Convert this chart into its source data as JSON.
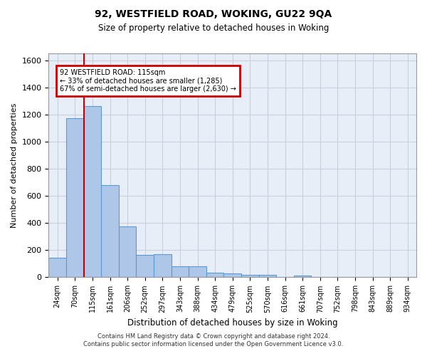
{
  "title_line1": "92, WESTFIELD ROAD, WOKING, GU22 9QA",
  "title_line2": "Size of property relative to detached houses in Woking",
  "xlabel": "Distribution of detached houses by size in Woking",
  "ylabel": "Number of detached properties",
  "footer_line1": "Contains HM Land Registry data © Crown copyright and database right 2024.",
  "footer_line2": "Contains public sector information licensed under the Open Government Licence v3.0.",
  "annotation_line1": "92 WESTFIELD ROAD: 115sqm",
  "annotation_line2": "← 33% of detached houses are smaller (1,285)",
  "annotation_line3": "67% of semi-detached houses are larger (2,630) →",
  "bar_labels": [
    "24sqm",
    "70sqm",
    "115sqm",
    "161sqm",
    "206sqm",
    "252sqm",
    "297sqm",
    "343sqm",
    "388sqm",
    "434sqm",
    "479sqm",
    "525sqm",
    "570sqm",
    "616sqm",
    "661sqm",
    "707sqm",
    "752sqm",
    "798sqm",
    "843sqm",
    "889sqm",
    "934sqm"
  ],
  "bar_values": [
    145,
    1175,
    1260,
    680,
    375,
    165,
    170,
    80,
    80,
    35,
    30,
    20,
    20,
    0,
    15,
    0,
    0,
    0,
    0,
    0,
    0
  ],
  "bar_color": "#aec6e8",
  "bar_edge_color": "#5b9bd5",
  "highlight_bar_index": 2,
  "vline_color": "#cc0000",
  "ylim": [
    0,
    1650
  ],
  "yticks": [
    0,
    200,
    400,
    600,
    800,
    1000,
    1200,
    1400,
    1600
  ],
  "grid_color": "#c8d0e0",
  "bg_color": "#e8eef8",
  "annotation_box_color": "#cc0000",
  "figsize": [
    6.0,
    5.0
  ],
  "dpi": 100
}
